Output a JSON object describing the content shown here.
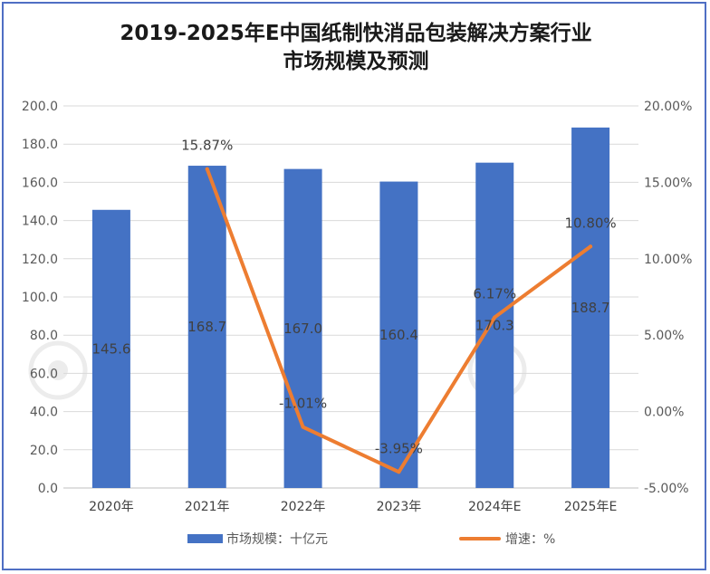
{
  "chart_data": {
    "type": "bar+line",
    "title_lines": [
      "2019-2025年E中国纸制快消品包装解决方案行业",
      "市场规模及预测"
    ],
    "categories": [
      "2020年",
      "2021年",
      "2022年",
      "2023年",
      "2024年E",
      "2025年E"
    ],
    "series": [
      {
        "name": "市场规模：十亿元",
        "type": "bar",
        "axis": "left",
        "color": "#4472c4",
        "values": [
          145.6,
          168.7,
          167.0,
          160.4,
          170.3,
          188.7
        ],
        "labels": [
          "145.6",
          "168.7",
          "167.0",
          "160.4",
          "170.3",
          "188.7"
        ]
      },
      {
        "name": "增速：%",
        "type": "line",
        "axis": "right",
        "color": "#ed7d31",
        "values": [
          null,
          15.87,
          -1.01,
          -3.95,
          6.17,
          10.8
        ],
        "labels": [
          "",
          "15.87%",
          "-1.01%",
          "-3.95%",
          "6.17%",
          "10.80%"
        ]
      }
    ],
    "y_left": {
      "range": [
        0,
        200
      ],
      "ticks": [
        "0.0",
        "20.0",
        "40.0",
        "60.0",
        "80.0",
        "100.0",
        "120.0",
        "140.0",
        "160.0",
        "180.0",
        "200.0"
      ]
    },
    "y_right": {
      "range": [
        -5,
        20
      ],
      "ticks": [
        "-5.00%",
        "0.00%",
        "5.00%",
        "10.00%",
        "15.00%",
        "20.00%"
      ]
    },
    "grid": true,
    "legend_position": "bottom"
  }
}
